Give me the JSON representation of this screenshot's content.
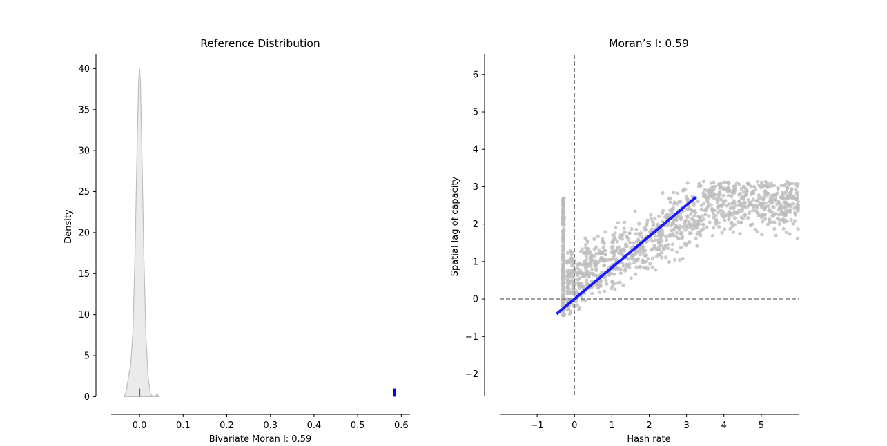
{
  "chart_data": [
    {
      "type": "area",
      "title": "Reference Distribution",
      "xlabel": "Bivariate Moran I: 0.59",
      "ylabel": "Density",
      "xlim": [
        -0.065,
        0.62
      ],
      "ylim": [
        -0.3,
        41.8
      ],
      "x_ticks": [
        0.0,
        0.1,
        0.2,
        0.3,
        0.4,
        0.5,
        0.6
      ],
      "x_tick_labels": [
        "0.0",
        "0.1",
        "0.2",
        "0.3",
        "0.4",
        "0.5",
        "0.6"
      ],
      "y_ticks": [
        0,
        5,
        10,
        15,
        20,
        25,
        30,
        35,
        40
      ],
      "y_tick_labels": [
        "0",
        "5",
        "10",
        "15",
        "20",
        "25",
        "30",
        "35",
        "40"
      ],
      "grid": false,
      "density_curve": {
        "x": [
          -0.035,
          -0.03,
          -0.025,
          -0.02,
          -0.015,
          -0.01,
          -0.005,
          -0.002,
          0.0,
          0.002,
          0.005,
          0.01,
          0.015,
          0.02,
          0.025,
          0.03,
          0.035,
          0.04,
          0.045
        ],
        "y": [
          0.0,
          0.8,
          2.5,
          4.0,
          8.0,
          18.0,
          32.0,
          38.5,
          40.0,
          38.5,
          31.0,
          17.0,
          7.0,
          2.2,
          0.4,
          0.05,
          0.05,
          0.3,
          0.0
        ]
      },
      "expected_marker": {
        "x": 0.0,
        "height": 1.0,
        "color": "#1f77b4"
      },
      "observed_marker": {
        "x": 0.585,
        "height": 1.0,
        "color": "#0000ff"
      },
      "fill_color": "#ebebeb",
      "line_color": "#bdbdbd"
    },
    {
      "type": "scatter",
      "title": "Moran’s I: 0.59",
      "xlabel": "Hash rate",
      "ylabel": "Spatial lag of capacity",
      "xlim": [
        -2.0,
        6.0
      ],
      "ylim": [
        -2.6,
        6.55
      ],
      "x_ticks": [
        -1,
        0,
        1,
        2,
        3,
        4,
        5
      ],
      "x_tick_labels": [
        "−1",
        "0",
        "1",
        "2",
        "3",
        "4",
        "5"
      ],
      "y_ticks": [
        -2,
        -1,
        0,
        1,
        2,
        3,
        4,
        5,
        6
      ],
      "y_tick_labels": [
        "−2",
        "−1",
        "0",
        "1",
        "2",
        "3",
        "4",
        "5",
        "6"
      ],
      "grid": false,
      "point_color": "#bdbdbd",
      "fit_line": {
        "x": [
          -0.48,
          3.25
        ],
        "y": [
          -0.4,
          2.72
        ],
        "color": "#0000ff"
      },
      "reference_lines": {
        "x": 0,
        "y": 0,
        "style": "dashed",
        "color": "#808080"
      },
      "cluster": {
        "x": -0.3,
        "y_range": [
          -0.45,
          2.7
        ],
        "count": 190
      },
      "cloud": {
        "x_range": [
          -0.2,
          6.0
        ],
        "y_range": [
          -0.5,
          3.15
        ],
        "count": 1100
      }
    }
  ]
}
